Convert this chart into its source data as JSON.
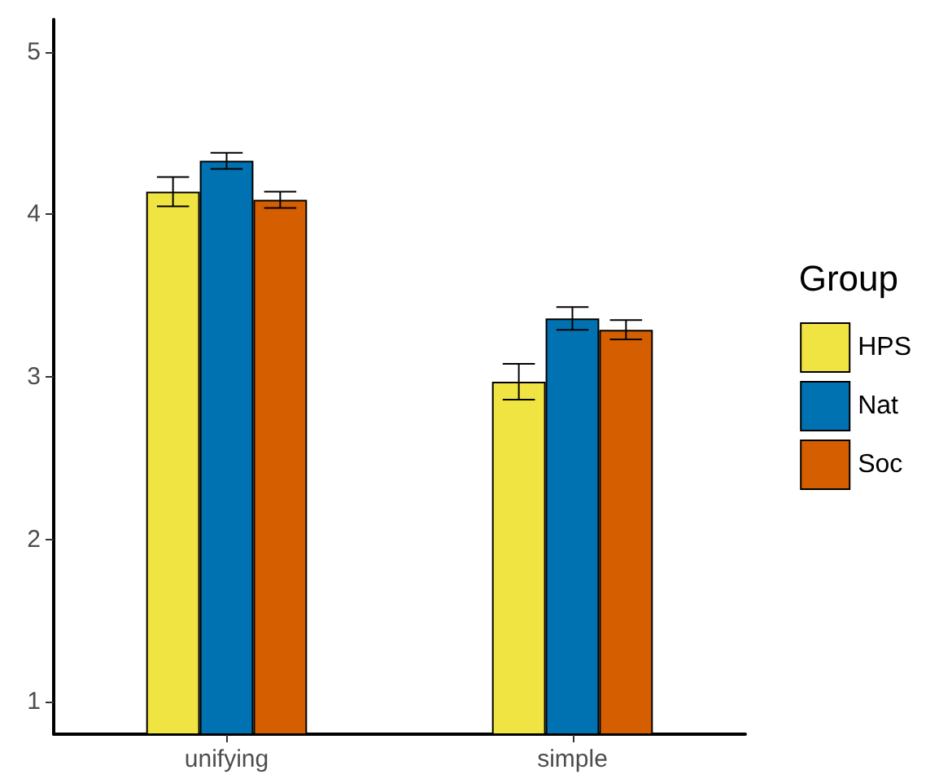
{
  "chart_data": {
    "type": "bar",
    "categories": [
      "unifying",
      "simple"
    ],
    "legend_title": "Group",
    "series": [
      {
        "name": "HPS",
        "color": "#f0e442",
        "values": [
          4.14,
          2.97
        ],
        "errors": [
          0.09,
          0.11
        ]
      },
      {
        "name": "Nat",
        "color": "#0072b2",
        "values": [
          4.33,
          3.36
        ],
        "errors": [
          0.05,
          0.07
        ]
      },
      {
        "name": "Soc",
        "color": "#d55e00",
        "values": [
          4.09,
          3.29
        ],
        "errors": [
          0.05,
          0.06
        ]
      }
    ],
    "ylim": [
      0.8,
      5.2
    ],
    "yticks": [
      1,
      2,
      3,
      4,
      5
    ],
    "grid": false,
    "legend": "right"
  }
}
